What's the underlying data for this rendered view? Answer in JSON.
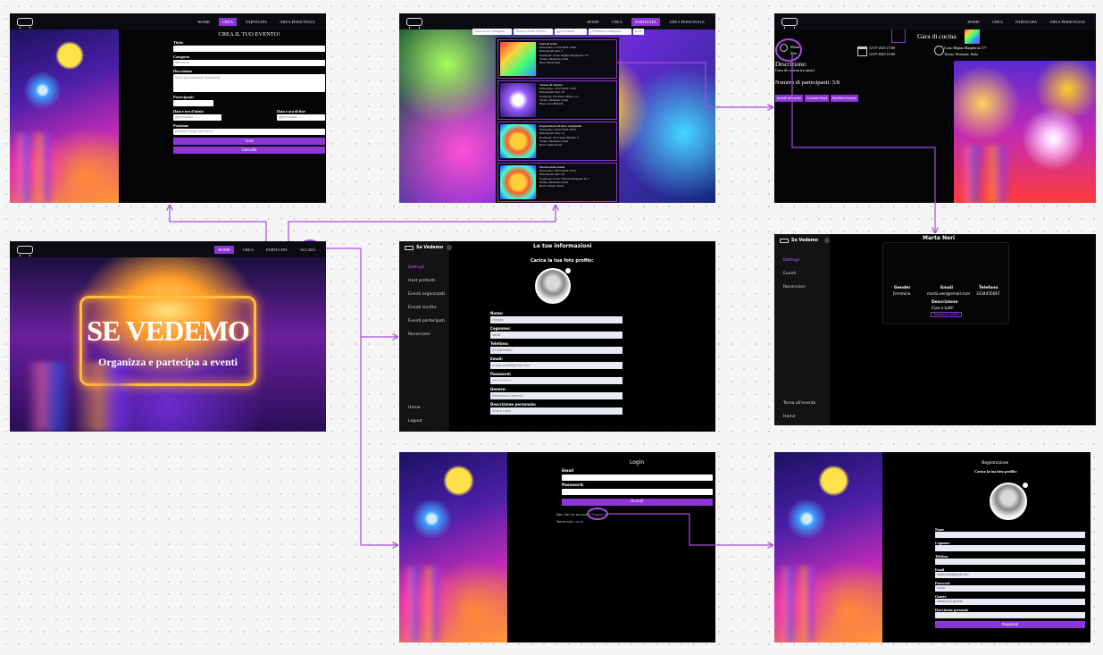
{
  "nav": {
    "home": "HOME",
    "crea": "CREA",
    "partecipa": "PARTECIPA",
    "area": "AREA PERSONALE",
    "accedi": "ACCEDI"
  },
  "create": {
    "title": "CREA IL TUO EVENTO!",
    "titolo": "Titolo",
    "categoria": "Categoria",
    "categoria_value": "Seleziona",
    "descrizione": "Descrizione",
    "descrizione_ph": "Scrivi qui una breve descrizione",
    "partecipanti": "Partecipanti",
    "data_inizio": "Data e ora d'inizio",
    "data_fine": "Data e ora di fine",
    "date_ph": "gg/mm/aaaa, --:--",
    "posizione": "Posizione",
    "posizione_ph": "Inserisci l'luogo dell'evento",
    "crea_btn": "Crea",
    "cancella_btn": "Cancella"
  },
  "browse": {
    "search1_ph": "Ricerca per categoria",
    "search2_ph": "Ricerca nome evento",
    "date_ph": "gg/mm/aaaa",
    "select_ph": "--Seleziona categoria--",
    "filter_btn": "Invia",
    "events": [
      {
        "name": "Gara di tetris",
        "l1": "Data inizio: 12/07/2023 14:00",
        "l2": "Partecipanti max: 5",
        "l3": "Posizione: Corso Regina Margherita 177",
        "l4": "Torino, Piemonte, Italia",
        "l5": "Host: Marta Neri"
      },
      {
        "name": "Torneo di calcetto",
        "l1": "Data inizio: 14/07/2023 15:00",
        "l2": "Partecipanti max: 10",
        "l3": "Posizione: Via Paolo Ottino, 15",
        "l4": "Torino, Piemonte, Italia",
        "l5": "Host: Luca Bianchi"
      },
      {
        "name": "Degustazione di birre artigianali",
        "l1": "Data inizio: 20/07/2023 20:00",
        "l2": "Partecipanti max: 12",
        "l3": "Posizione: Via Cesare Battisti, 5",
        "l4": "Torino, Piemonte, Italia",
        "l5": "Host: Giulia Rossi"
      },
      {
        "name": "Pizzata della scuola",
        "l1": "Data inizio: 28/07/2023 19:30",
        "l2": "Partecipanti max: 20",
        "l3": "Posizione: Corso Vittorio Emanuele II, 1",
        "l4": "Torino, Piemonte, Italia",
        "l5": "Host: Giorgio Verdi"
      }
    ]
  },
  "detail": {
    "title": "Gara di cucina",
    "host_first": "Marta",
    "host_last": "Neri",
    "start": "12-07-2023 15:00",
    "end": "12-07-2023 18:00",
    "address": "Corso Regina Margherita 177",
    "city": "Torino, Piemonte, Italia",
    "desc_h": "Descrizione:",
    "desc": "Gara di cucina tra amici",
    "count": "Numero di partecipanti: 5/8",
    "btn1": "Iscriviti all'evento",
    "btn2": "Contatta l'host",
    "btn3": "Modifica l'evento"
  },
  "home": {
    "title": "SE VEDEMO",
    "subtitle": "Organizza e partecipa a eventi",
    "pill1": "HOME",
    "pill2": "CREA",
    "pill3": "PARTECIPA",
    "pill4": "ACCEDI"
  },
  "personal": {
    "brand": "Se Vedemo",
    "menu": [
      "Dettagli",
      "Host preferiti",
      "Eventi organizzati",
      "Eventi iscritto",
      "Eventi partecipati",
      "Recensioni"
    ],
    "bottom": [
      "Home",
      "Logout"
    ],
    "heading": "Le tue informazioni",
    "photo": "Carica la tua foto profilo:",
    "fields": [
      {
        "label": "Nome:",
        "value": "Giorgio"
      },
      {
        "label": "Cognome:",
        "value": "Verdi"
      },
      {
        "label": "Telefono:",
        "value": "3333456987"
      },
      {
        "label": "Email:",
        "value": "mario.verdi@gmail.com"
      },
      {
        "label": "Password:",
        "value": "••••••••••"
      },
      {
        "label": "Genere:",
        "value": "Seleziona il genere"
      },
      {
        "label": "Descrizione personale:",
        "value": "Ciao a tutti!"
      }
    ]
  },
  "profile": {
    "brand": "Se Vedemo",
    "menu": [
      "Dettagli",
      "Eventi",
      "Recensioni"
    ],
    "bottom": [
      "Torna all'evento",
      "Home"
    ],
    "name": "Marta Neri",
    "gender_h": "Gender",
    "gender": "Femmina",
    "email_h": "Email",
    "email": "marta.neri@email.com",
    "tel_h": "Telefono",
    "tel": "3334455667",
    "desc_h": "Descrizione",
    "desc": "Ciao a tutti!",
    "btn": "Recensisci profilo"
  },
  "login": {
    "title": "Login",
    "email": "Email",
    "password": "Password:",
    "btn": "Accedi",
    "reg_q": "Non hai un account?",
    "reg_link": "Registrati",
    "home_q": "Torna alla",
    "home_link": "home"
  },
  "register": {
    "title": "Registrazione",
    "photo": "Carica la tua foto profilo:",
    "fields": [
      {
        "label": "Nome",
        "value": ""
      },
      {
        "label": "Cognome",
        "value": ""
      },
      {
        "label": "Telefono",
        "value": ""
      },
      {
        "label": "Email",
        "value": "mario.rossi@gmail.com"
      },
      {
        "label": "Password",
        "value": "••••••••"
      },
      {
        "label": "Genere",
        "value": "Seleziona il genere"
      },
      {
        "label": "Descrizione personale",
        "value": ""
      }
    ],
    "btn": "Registrati"
  },
  "colors": {
    "accent": "#8e35d6",
    "arrow": "#a64de0",
    "bg": "#050508"
  }
}
